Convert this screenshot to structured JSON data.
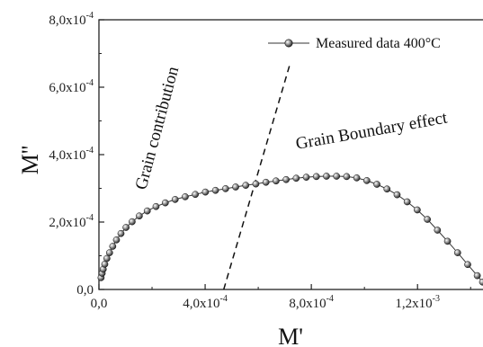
{
  "chart_data": {
    "type": "scatter",
    "title": "",
    "xlabel": "M'",
    "ylabel": "M''",
    "xlim": [
      0,
      0.00145
    ],
    "ylim": [
      0,
      0.0008
    ],
    "x_ticks": [
      {
        "value": 0.0,
        "mantissa": "0,0",
        "exp": ""
      },
      {
        "value": 0.0004,
        "mantissa": "4,0x10",
        "exp": "-4"
      },
      {
        "value": 0.0008,
        "mantissa": "8,0x10",
        "exp": "-4"
      },
      {
        "value": 0.0012,
        "mantissa": "1,2x10",
        "exp": "-3"
      }
    ],
    "y_ticks": [
      {
        "value": 0.0,
        "mantissa": "0,0",
        "exp": ""
      },
      {
        "value": 0.0002,
        "mantissa": "2,0x10",
        "exp": "-4"
      },
      {
        "value": 0.0004,
        "mantissa": "4,0x10",
        "exp": "-4"
      },
      {
        "value": 0.0006,
        "mantissa": "6,0x10",
        "exp": "-4"
      },
      {
        "value": 0.0008,
        "mantissa": "8,0x10",
        "exp": "-4"
      }
    ],
    "legend": {
      "position": "top-right",
      "entries": [
        "Measured data 400°C"
      ]
    },
    "series": [
      {
        "name": "Measured data 400°C",
        "x": [
          8e-06,
          1.2e-05,
          1.6e-05,
          2.2e-05,
          3e-05,
          4e-05,
          5.2e-05,
          6.6e-05,
          8.3e-05,
          0.000102,
          0.000125,
          0.000152,
          0.000182,
          0.000215,
          0.00025,
          0.000287,
          0.000325,
          0.000363,
          0.000401,
          0.000439,
          0.000477,
          0.000515,
          0.000553,
          0.000591,
          0.000629,
          0.000667,
          0.000705,
          0.000743,
          0.000781,
          0.000819,
          0.000857,
          0.000895,
          0.000933,
          0.000971,
          0.001009,
          0.001047,
          0.001085,
          0.001123,
          0.001161,
          0.001199,
          0.001237,
          0.001275,
          0.001313,
          0.001351,
          0.001389,
          0.001425,
          0.001445
        ],
        "y": [
          3.5e-05,
          4.8e-05,
          6e-05,
          7.5e-05,
          9.2e-05,
          0.000109,
          0.000128,
          0.000147,
          0.000166,
          0.000184,
          0.000201,
          0.000218,
          0.000233,
          0.000246,
          0.000257,
          0.000267,
          0.000275,
          0.000282,
          0.000289,
          0.000294,
          0.000299,
          0.000304,
          0.000309,
          0.000313,
          0.000318,
          0.000322,
          0.000326,
          0.00033,
          0.000333,
          0.000335,
          0.000336,
          0.000336,
          0.000335,
          0.000331,
          0.000323,
          0.000312,
          0.000298,
          0.000281,
          0.00026,
          0.000236,
          0.000208,
          0.000176,
          0.000143,
          0.000109,
          7.4e-05,
          4.1e-05,
          2.2e-05
        ]
      }
    ],
    "annotations": [
      {
        "text": "Grain contribution"
      },
      {
        "text": "Grain Boundary effect"
      }
    ],
    "dashed_line": {
      "x": [
        0.00047,
        0.00072
      ],
      "y": [
        0.0,
        0.00067
      ]
    }
  }
}
